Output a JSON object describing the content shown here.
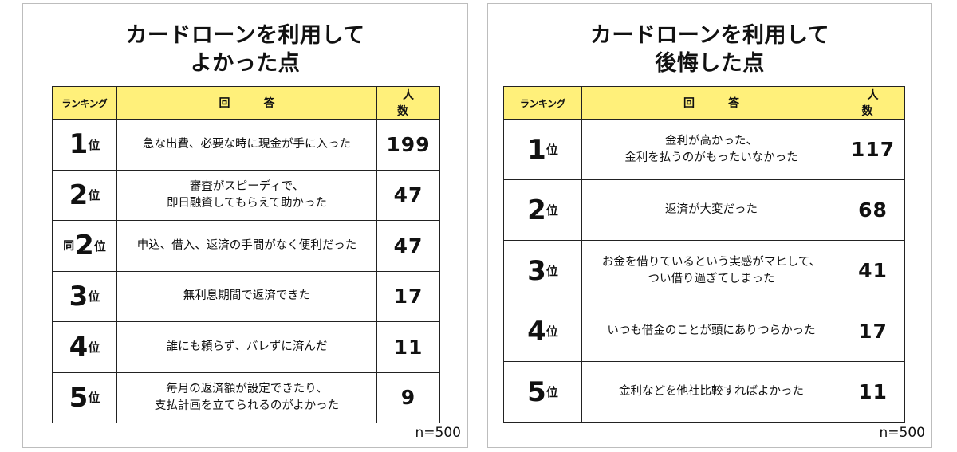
{
  "panels": [
    {
      "title_lines": [
        "カードローンを利用して",
        "よかった点"
      ],
      "headers": {
        "rank": "ランキング",
        "answer": "回　答",
        "count": "人　数"
      },
      "rows": [
        {
          "prefix": "",
          "num": "1",
          "suffix": "位",
          "answer_lines": [
            "急な出費、必要な時に現金が手に入った"
          ],
          "count": "199"
        },
        {
          "prefix": "",
          "num": "2",
          "suffix": "位",
          "answer_lines": [
            "審査がスピーディで、",
            "即日融資してもらえて助かった"
          ],
          "count": "47"
        },
        {
          "prefix": "同",
          "num": "2",
          "suffix": "位",
          "answer_lines": [
            "申込、借入、返済の手間がなく便利だった"
          ],
          "count": "47"
        },
        {
          "prefix": "",
          "num": "3",
          "suffix": "位",
          "answer_lines": [
            "無利息期間で返済できた"
          ],
          "count": "17"
        },
        {
          "prefix": "",
          "num": "4",
          "suffix": "位",
          "answer_lines": [
            "誰にも頼らず、バレずに済んだ"
          ],
          "count": "11"
        },
        {
          "prefix": "",
          "num": "5",
          "suffix": "位",
          "answer_lines": [
            "毎月の返済額が設定できたり、",
            "支払計画を立てられるのがよかった"
          ],
          "count": "9"
        }
      ],
      "sample_size": "n=500"
    },
    {
      "title_lines": [
        "カードローンを利用して",
        "後悔した点"
      ],
      "headers": {
        "rank": "ランキング",
        "answer": "回　答",
        "count": "人　数"
      },
      "rows": [
        {
          "prefix": "",
          "num": "1",
          "suffix": "位",
          "answer_lines": [
            "金利が高かった、",
            "金利を払うのがもったいなかった"
          ],
          "count": "117"
        },
        {
          "prefix": "",
          "num": "2",
          "suffix": "位",
          "answer_lines": [
            "返済が大変だった"
          ],
          "count": "68"
        },
        {
          "prefix": "",
          "num": "3",
          "suffix": "位",
          "answer_lines": [
            "お金を借りているという実感がマヒして、",
            "つい借り過ぎてしまった"
          ],
          "count": "41"
        },
        {
          "prefix": "",
          "num": "4",
          "suffix": "位",
          "answer_lines": [
            "いつも借金のことが頭にありつらかった"
          ],
          "count": "17"
        },
        {
          "prefix": "",
          "num": "5",
          "suffix": "位",
          "answer_lines": [
            "金利などを他社比較すればよかった"
          ],
          "count": "11"
        }
      ],
      "sample_size": "n=500"
    }
  ],
  "colors": {
    "header_bg": "#fff07a",
    "border": "#222222",
    "panel_border": "#bdbdbd"
  }
}
